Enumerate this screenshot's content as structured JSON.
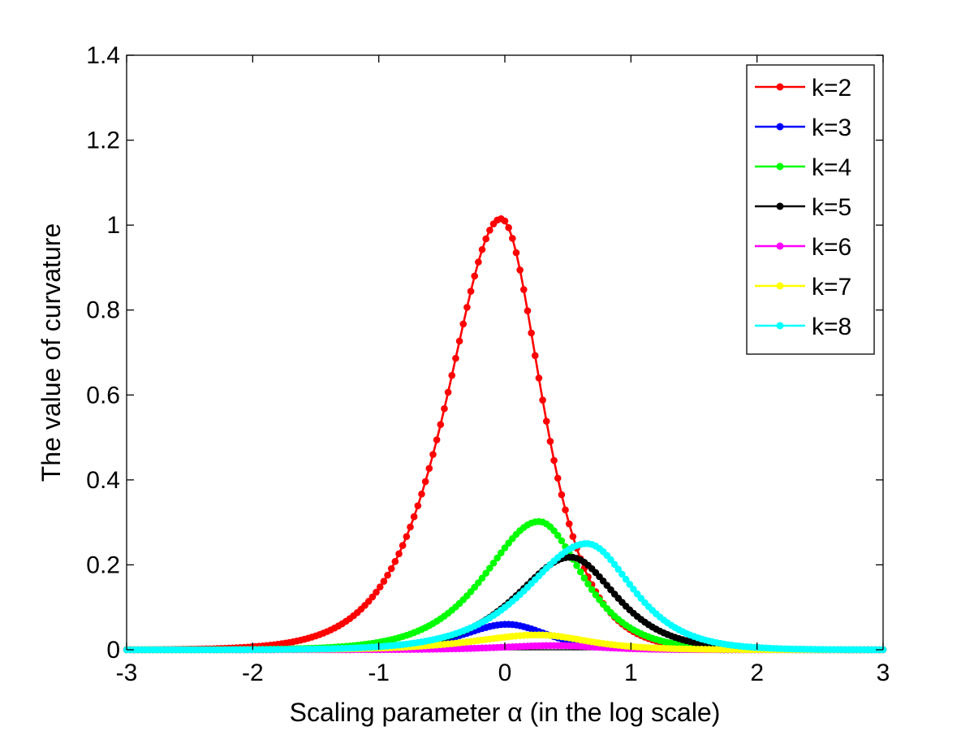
{
  "chart_data": {
    "type": "line",
    "xlabel": "Scaling parameter α (in the log scale)",
    "ylabel": "The value of curvature",
    "xlim": [
      -3,
      3
    ],
    "ylim": [
      0,
      1.4
    ],
    "xticks": [
      -3,
      -2,
      -1,
      0,
      1,
      2,
      3
    ],
    "yticks": [
      0,
      0.2,
      0.4,
      0.6,
      0.8,
      1,
      1.2,
      1.4
    ],
    "xtick_labels": [
      "-3",
      "-2",
      "-1",
      "0",
      "1",
      "2",
      "3"
    ],
    "ytick_labels": [
      "0",
      "0.2",
      "0.4",
      "0.6",
      "0.8",
      "1",
      "1.2",
      "1.4"
    ],
    "grid": false,
    "legend_position": "top-right",
    "marker": "circle",
    "sample_x_range": [
      -3,
      3
    ],
    "sample_count": 201,
    "series": [
      {
        "name": "k=2",
        "color": "#ff0000",
        "peak_x": -0.03,
        "peak_y": 1.015,
        "width_left": 0.5,
        "width_right": 0.38
      },
      {
        "name": "k=3",
        "color": "#0000ff",
        "peak_x": 0.02,
        "peak_y": 0.06,
        "width_left": 0.42,
        "width_right": 0.38
      },
      {
        "name": "k=4",
        "color": "#00ff00",
        "peak_x": 0.27,
        "peak_y": 0.302,
        "width_left": 0.5,
        "width_right": 0.4
      },
      {
        "name": "k=5",
        "color": "#000000",
        "peak_x": 0.52,
        "peak_y": 0.218,
        "width_left": 0.5,
        "width_right": 0.42
      },
      {
        "name": "k=6",
        "color": "#ff00ff",
        "peak_x": 0.4,
        "peak_y": 0.01,
        "width_left": 0.5,
        "width_right": 0.4
      },
      {
        "name": "k=7",
        "color": "#ffff00",
        "peak_x": 0.27,
        "peak_y": 0.035,
        "width_left": 0.6,
        "width_right": 0.45
      },
      {
        "name": "k=8",
        "color": "#00ffff",
        "peak_x": 0.65,
        "peak_y": 0.25,
        "width_left": 0.55,
        "width_right": 0.42
      }
    ]
  }
}
